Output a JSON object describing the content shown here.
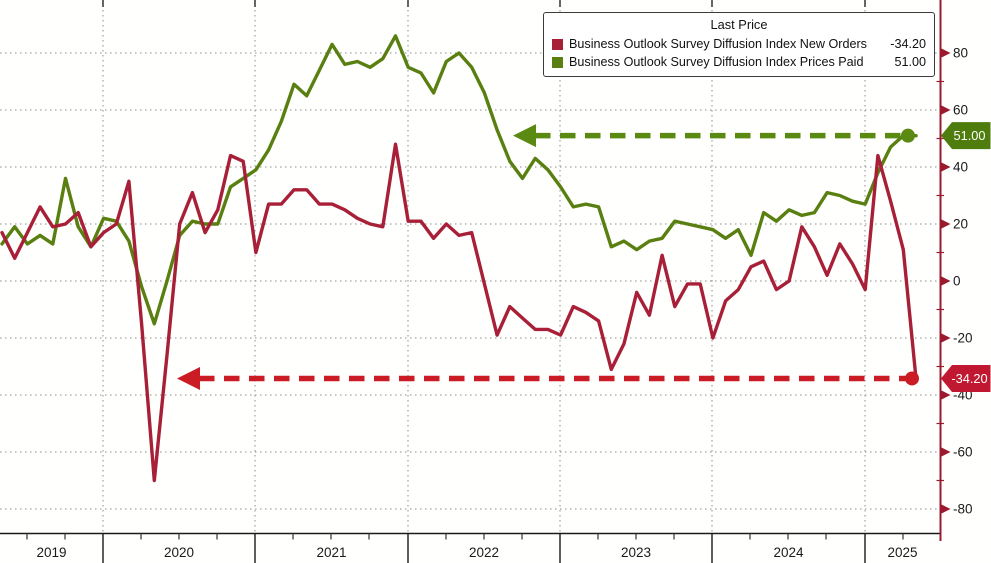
{
  "legend": {
    "title": "Last Price",
    "items": [
      {
        "label": "Business Outlook Survey Diffusion Index New Orders",
        "value": "-34.20",
        "color": "#A82038"
      },
      {
        "label": "Business Outlook Survey Diffusion Index Prices Paid",
        "value": "51.00",
        "color": "#597F10"
      }
    ]
  },
  "axis": {
    "y_tick_labels": [
      "80",
      "60",
      "40",
      "20",
      "0",
      "-20",
      "-40",
      "-60",
      "-80"
    ],
    "y_tick_values": [
      80,
      60,
      40,
      20,
      0,
      -20,
      -40,
      -60,
      -80
    ],
    "y_minor_values": [
      70,
      50,
      30,
      10,
      -10,
      -30,
      -50,
      -70
    ],
    "x_year_labels": [
      "2019",
      "2020",
      "2021",
      "2022",
      "2023",
      "2024",
      "2025"
    ],
    "axis_color": "#9B1A2E",
    "label_color": "#1a1a1a"
  },
  "badges": {
    "prices_paid": {
      "text": "51.00",
      "value": 51.0,
      "color": "#4F7D0D",
      "text_color": "#ffffff"
    },
    "new_orders": {
      "text": "-34.20",
      "value": -34.2,
      "color": "#C01830",
      "text_color": "#ffffff"
    }
  },
  "chart_data": {
    "type": "line",
    "title": "",
    "xlabel": "",
    "ylabel": "",
    "ylim": [
      -88,
      98
    ],
    "grid": "dotted",
    "legend_position": "top-right",
    "x": [
      "Apr 2019",
      "May 2019",
      "Jun 2019",
      "Jul 2019",
      "Aug 2019",
      "Sep 2019",
      "Oct 2019",
      "Nov 2019",
      "Dec 2019",
      "Jan 2020",
      "Feb 2020",
      "Mar 2020",
      "Apr 2020",
      "May 2020",
      "Jun 2020",
      "Jul 2020",
      "Aug 2020",
      "Sep 2020",
      "Oct 2020",
      "Nov 2020",
      "Dec 2020",
      "Jan 2021",
      "Feb 2021",
      "Mar 2021",
      "Apr 2021",
      "May 2021",
      "Jun 2021",
      "Jul 2021",
      "Aug 2021",
      "Sep 2021",
      "Oct 2021",
      "Nov 2021",
      "Dec 2021",
      "Jan 2022",
      "Feb 2022",
      "Mar 2022",
      "Apr 2022",
      "May 2022",
      "Jun 2022",
      "Jul 2022",
      "Aug 2022",
      "Sep 2022",
      "Oct 2022",
      "Nov 2022",
      "Dec 2022",
      "Jan 2023",
      "Feb 2023",
      "Mar 2023",
      "Apr 2023",
      "May 2023",
      "Jun 2023",
      "Jul 2023",
      "Aug 2023",
      "Sep 2023",
      "Oct 2023",
      "Nov 2023",
      "Dec 2023",
      "Jan 2024",
      "Feb 2024",
      "Mar 2024",
      "Apr 2024",
      "May 2024",
      "Jun 2024",
      "Jul 2024",
      "Aug 2024",
      "Sep 2024",
      "Oct 2024",
      "Nov 2024",
      "Dec 2024",
      "Jan 2025",
      "Feb 2025",
      "Mar 2025",
      "Apr 2025"
    ],
    "series": [
      {
        "name": "Business Outlook Survey Diffusion Index New Orders",
        "color": "#A82038",
        "last_value": -34.2,
        "values": [
          17,
          8,
          17,
          26,
          19,
          20,
          24,
          12,
          17,
          20,
          35,
          -15,
          -70,
          -26,
          20,
          31,
          17,
          25,
          44,
          42,
          10,
          27,
          27,
          32,
          32,
          27,
          27,
          25,
          22,
          20,
          19,
          48,
          21,
          21,
          15,
          20,
          16,
          17,
          -1,
          -19,
          -9,
          -13,
          -17,
          -17,
          -19,
          -9,
          -11,
          -14,
          -31,
          -22,
          -4,
          -12,
          9,
          -9,
          -1,
          -1,
          -20,
          -7,
          -3,
          5,
          7,
          -3,
          0,
          19,
          12,
          2,
          13,
          6,
          -3,
          44,
          28,
          11,
          -34.2
        ]
      },
      {
        "name": "Business Outlook Survey Diffusion Index Prices Paid",
        "color": "#597F10",
        "last_value": 51.0,
        "values": [
          13,
          19,
          13,
          16,
          13,
          36,
          19,
          12,
          22,
          21,
          14,
          -2,
          -15,
          0,
          16,
          21,
          20,
          20,
          33,
          36,
          39,
          46,
          56,
          69,
          65,
          74,
          83,
          76,
          77,
          75,
          78,
          86,
          75,
          73,
          66,
          77,
          80,
          75,
          66,
          53,
          42,
          36,
          43,
          39,
          33,
          26,
          27,
          26,
          12,
          14,
          11,
          14,
          15,
          21,
          20,
          19,
          18,
          15,
          18,
          9,
          24,
          21,
          25,
          23,
          24,
          31,
          30,
          28,
          27,
          38,
          47,
          51,
          51
        ]
      }
    ],
    "annotations": [
      {
        "type": "dashed-arrow-left",
        "series": "New Orders",
        "at_value": -34.2,
        "color": "#CB1B24"
      },
      {
        "type": "dashed-arrow-left",
        "series": "Prices Paid",
        "at_value": 51.0,
        "color": "#5A8A12"
      }
    ]
  }
}
